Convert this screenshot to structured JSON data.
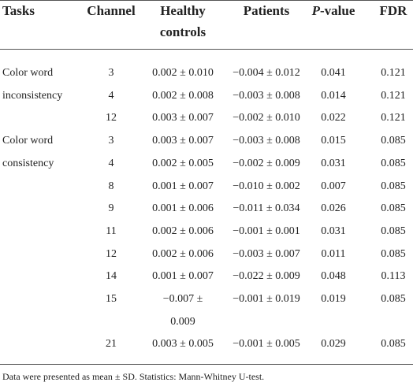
{
  "header": {
    "tasks": "Tasks",
    "channel": "Channel",
    "healthy": [
      "Healthy",
      "controls"
    ],
    "patients": "Patients",
    "p_value": {
      "italic": "P",
      "text": "-value"
    },
    "fdr": "FDR"
  },
  "groups": [
    {
      "task": [
        "Color word",
        "inconsistency"
      ],
      "rows": [
        {
          "channel": "3",
          "healthy": [
            "0.002 ± 0.010"
          ],
          "patients": "−0.004 ± 0.012",
          "p": "0.041",
          "fdr": "0.121"
        },
        {
          "channel": "4",
          "healthy": [
            "0.002 ± 0.008"
          ],
          "patients": "−0.003 ± 0.008",
          "p": "0.014",
          "fdr": "0.121"
        },
        {
          "channel": "12",
          "healthy": [
            "0.003 ± 0.007"
          ],
          "patients": "−0.002 ± 0.010",
          "p": "0.022",
          "fdr": "0.121"
        }
      ]
    },
    {
      "task": [
        "Color word",
        "consistency"
      ],
      "rows": [
        {
          "channel": "3",
          "healthy": [
            "0.003 ± 0.007"
          ],
          "patients": "−0.003 ± 0.008",
          "p": "0.015",
          "fdr": "0.085"
        },
        {
          "channel": "4",
          "healthy": [
            "0.002 ± 0.005"
          ],
          "patients": "−0.002 ± 0.009",
          "p": "0.031",
          "fdr": "0.085"
        },
        {
          "channel": "8",
          "healthy": [
            "0.001 ± 0.007"
          ],
          "patients": "−0.010 ± 0.002",
          "p": "0.007",
          "fdr": "0.085"
        },
        {
          "channel": "9",
          "healthy": [
            "0.001 ± 0.006"
          ],
          "patients": "−0.011 ± 0.034",
          "p": "0.026",
          "fdr": "0.085"
        },
        {
          "channel": "11",
          "healthy": [
            "0.002 ± 0.006"
          ],
          "patients": "−0.001 ± 0.001",
          "p": "0.031",
          "fdr": "0.085"
        },
        {
          "channel": "12",
          "healthy": [
            "0.002 ± 0.006"
          ],
          "patients": "−0.003 ± 0.007",
          "p": "0.011",
          "fdr": "0.085"
        },
        {
          "channel": "14",
          "healthy": [
            "0.001 ± 0.007"
          ],
          "patients": "−0.022 ± 0.009",
          "p": "0.048",
          "fdr": "0.113"
        },
        {
          "channel": "15",
          "healthy": [
            "−0.007 ±",
            "0.009"
          ],
          "patients": "−0.001 ± 0.019",
          "p": "0.019",
          "fdr": "0.085"
        },
        {
          "channel": "21",
          "healthy": [
            "0.003 ± 0.005"
          ],
          "patients": "−0.001 ± 0.005",
          "p": "0.029",
          "fdr": "0.085"
        }
      ]
    }
  ],
  "footnote": "Data were presented as mean ± SD. Statistics: Mann-Whitney U-test."
}
